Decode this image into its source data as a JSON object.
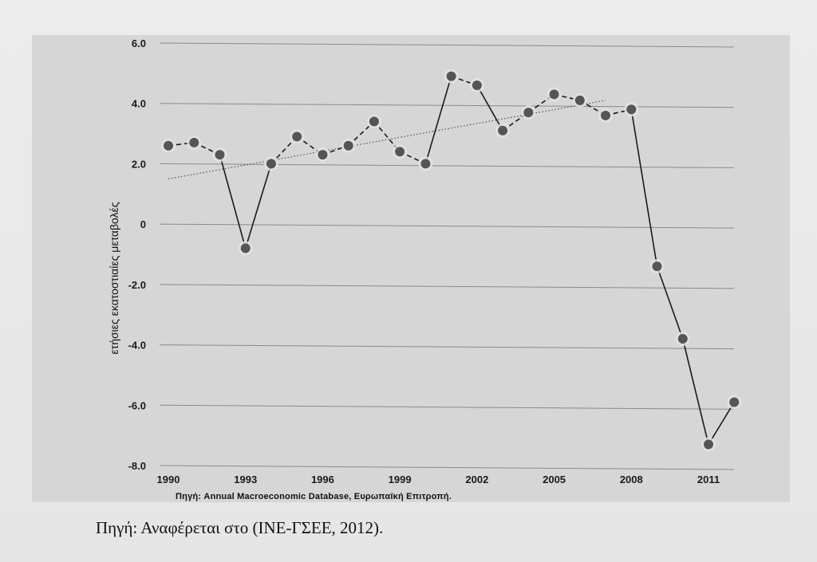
{
  "chart_data": {
    "type": "line",
    "title": "",
    "xlabel": "",
    "ylabel": "ετήσιες εκατοστιαίες μεταβολές",
    "x": [
      1990,
      1991,
      1992,
      1993,
      1994,
      1995,
      1996,
      1997,
      1998,
      1999,
      2000,
      2001,
      2002,
      2003,
      2004,
      2005,
      2006,
      2007,
      2008,
      2009,
      2010,
      2011,
      2012
    ],
    "series": [
      {
        "name": "",
        "values": [
          2.6,
          2.7,
          2.3,
          -0.8,
          2.0,
          2.9,
          2.3,
          2.6,
          3.4,
          2.4,
          2.0,
          4.9,
          4.6,
          3.1,
          3.7,
          4.3,
          4.1,
          3.6,
          3.8,
          -1.4,
          -3.8,
          -7.3,
          -5.9
        ]
      }
    ],
    "trendline": {
      "style": "dotted",
      "x": [
        1990,
        2007
      ],
      "y": [
        1.5,
        4.1
      ]
    },
    "xticks": [
      "1990",
      "1993",
      "1996",
      "1999",
      "2002",
      "2005",
      "2008",
      "2011"
    ],
    "yticks": [
      "6.0",
      "4.0",
      "2.0",
      "0",
      "-2.0",
      "-4.0",
      "-6.0",
      "-8.0"
    ],
    "ylim": [
      -8,
      6
    ],
    "grid": true,
    "source_note": "Πηγή: Annual Macroeconomic Database, Ευρωπαϊκή Επιτροπή.",
    "colors": {
      "line": "#1a1a1a",
      "marker": "#555555",
      "grid": "#8a8a8a",
      "panel": "#d6d6d6"
    }
  },
  "caption": "Πηγή: Αναφέρεται στο (ΙΝΕ-ΓΣΕΕ, 2012)."
}
